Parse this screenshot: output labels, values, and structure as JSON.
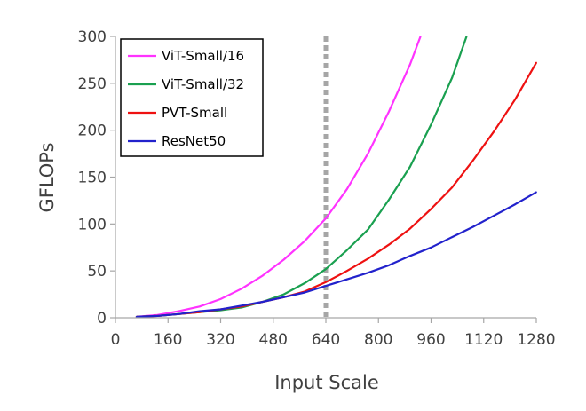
{
  "chart_data": {
    "type": "line",
    "title": "",
    "xlabel": "Input Scale",
    "ylabel": "GFLOPs",
    "xlim": [
      0,
      1280
    ],
    "ylim": [
      0,
      300
    ],
    "x_ticks": [
      "0",
      "160",
      "320",
      "480",
      "640",
      "800",
      "960",
      "1120",
      "1280"
    ],
    "y_ticks": [
      "0",
      "50",
      "100",
      "150",
      "200",
      "250",
      "300"
    ],
    "x_tick_values": [
      0,
      160,
      320,
      480,
      640,
      800,
      960,
      1120,
      1280
    ],
    "y_tick_values": [
      0,
      50,
      100,
      150,
      200,
      250,
      300
    ],
    "grid": false,
    "legend_position": "top-left",
    "reference_line": {
      "x": 640,
      "style": "dotted",
      "color": "#A6A6A6"
    },
    "series": [
      {
        "name": "ViT-Small/16",
        "color": "#FF33FF",
        "x": [
          64,
          128,
          192,
          256,
          320,
          384,
          448,
          512,
          576,
          640,
          704,
          768,
          832,
          896,
          928
        ],
        "y": [
          1,
          3,
          7,
          12,
          20,
          31,
          45,
          62,
          82,
          106,
          137,
          175,
          220,
          270,
          300
        ]
      },
      {
        "name": "ViT-Small/32",
        "color": "#1AA050",
        "x": [
          64,
          128,
          192,
          256,
          320,
          384,
          448,
          512,
          576,
          640,
          704,
          768,
          832,
          896,
          960,
          1024,
          1068
        ],
        "y": [
          1,
          2,
          4,
          6,
          8,
          11,
          17,
          25,
          37,
          52,
          72,
          94,
          126,
          161,
          206,
          256,
          300
        ]
      },
      {
        "name": "PVT-Small",
        "color": "#EE1111",
        "x": [
          64,
          128,
          192,
          256,
          320,
          384,
          448,
          512,
          576,
          640,
          704,
          768,
          832,
          896,
          960,
          1024,
          1088,
          1152,
          1216,
          1280
        ],
        "y": [
          1,
          2,
          4,
          6,
          9,
          12,
          17,
          22,
          28,
          38,
          50,
          63,
          78,
          95,
          116,
          139,
          168,
          199,
          233,
          272
        ]
      },
      {
        "name": "ResNet50",
        "color": "#2222CC",
        "x": [
          64,
          128,
          192,
          256,
          320,
          384,
          448,
          512,
          576,
          640,
          704,
          768,
          832,
          896,
          960,
          1024,
          1088,
          1152,
          1216,
          1280
        ],
        "y": [
          1,
          2,
          4,
          7,
          9,
          13,
          17,
          22,
          27,
          34,
          41,
          48,
          56,
          66,
          75,
          86,
          97,
          109,
          121,
          134
        ]
      }
    ]
  }
}
